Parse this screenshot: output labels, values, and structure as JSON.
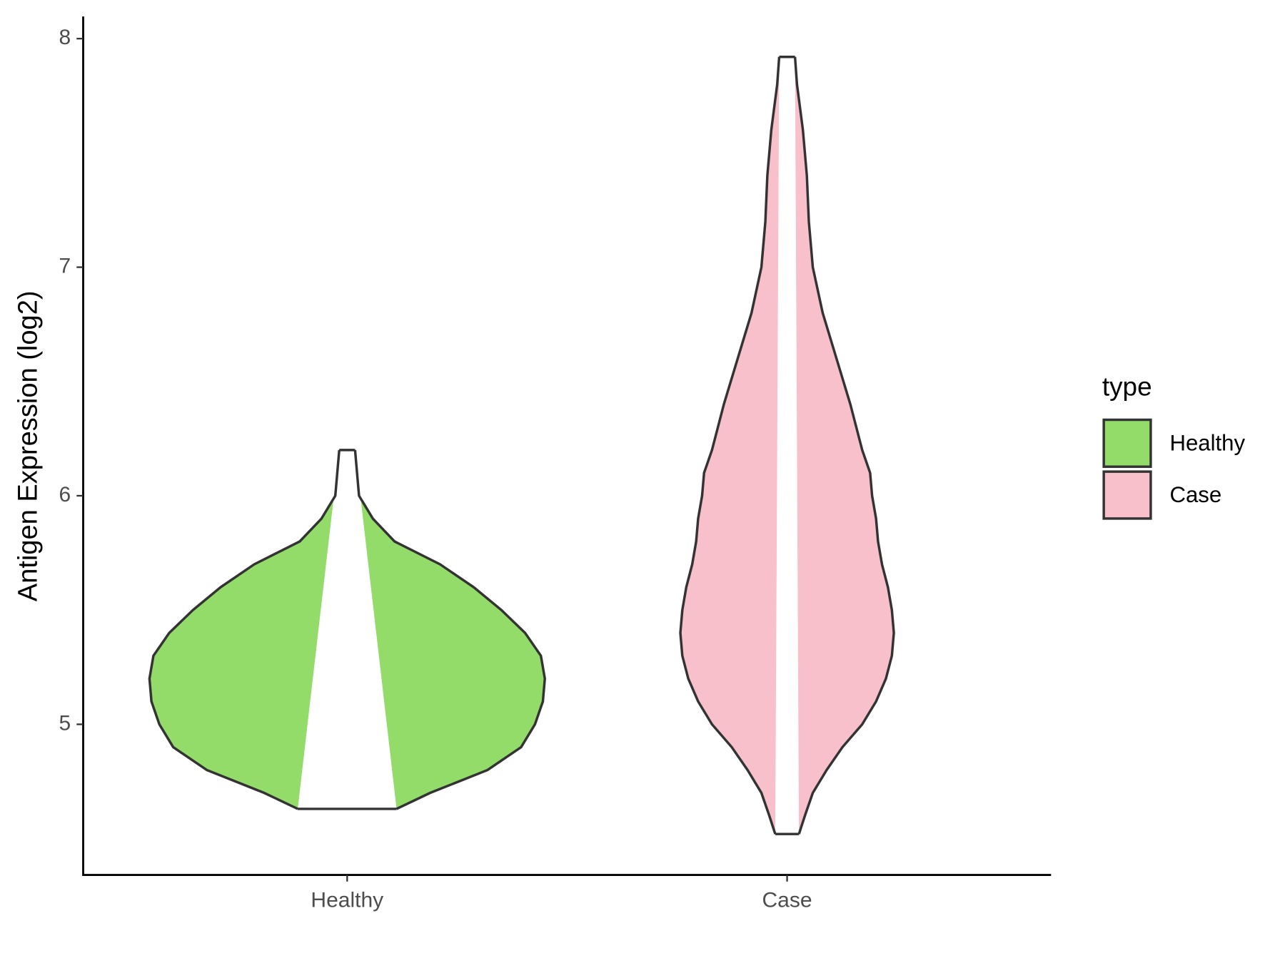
{
  "chart_data": {
    "type": "violin",
    "ylabel": "Antigen Expression (log2)",
    "categories": [
      "Healthy",
      "Case"
    ],
    "ylim": [
      4.341,
      8.097
    ],
    "yticks": [
      5,
      6,
      7,
      8
    ],
    "legend_title": "type",
    "legend_position": "right",
    "series": [
      {
        "name": "Healthy",
        "color": "#93dc6a",
        "y": [
          4.63,
          4.7,
          4.8,
          4.9,
          5.0,
          5.1,
          5.2,
          5.3,
          5.4,
          5.5,
          5.6,
          5.7,
          5.8,
          5.9,
          6.0,
          6.1,
          6.2
        ],
        "density": [
          0.25,
          0.42,
          0.71,
          0.88,
          0.95,
          0.99,
          1,
          0.98,
          0.9,
          0.78,
          0.64,
          0.47,
          0.24,
          0.13,
          0.06,
          0.05,
          0.04
        ]
      },
      {
        "name": "Case",
        "color": "#f7c0cb",
        "y": [
          4.52,
          4.6,
          4.7,
          4.8,
          4.9,
          5.0,
          5.1,
          5.2,
          5.3,
          5.4,
          5.5,
          5.6,
          5.7,
          5.8,
          5.9,
          6.0,
          6.1,
          6.2,
          6.4,
          6.6,
          6.8,
          7.0,
          7.2,
          7.4,
          7.6,
          7.8,
          7.92
        ],
        "density": [
          0.06,
          0.09,
          0.13,
          0.2,
          0.28,
          0.38,
          0.45,
          0.5,
          0.53,
          0.54,
          0.53,
          0.51,
          0.48,
          0.46,
          0.45,
          0.43,
          0.42,
          0.38,
          0.32,
          0.25,
          0.18,
          0.13,
          0.11,
          0.1,
          0.08,
          0.05,
          0.04
        ]
      }
    ]
  }
}
